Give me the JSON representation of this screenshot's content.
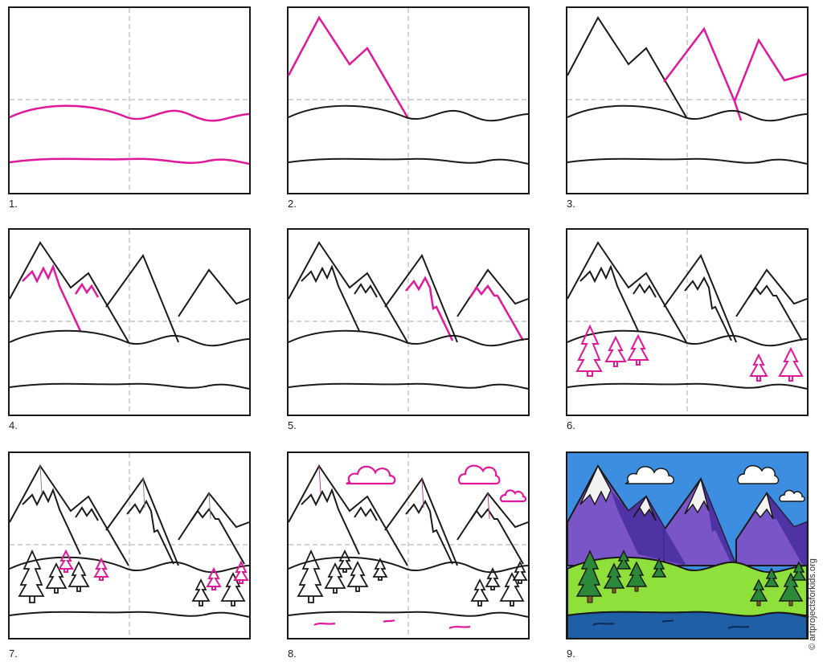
{
  "steps": [
    {
      "label": "1."
    },
    {
      "label": "2."
    },
    {
      "label": "3."
    },
    {
      "label": "4."
    },
    {
      "label": "5."
    },
    {
      "label": "6."
    },
    {
      "label": "7."
    },
    {
      "label": "8."
    },
    {
      "label": "9."
    }
  ],
  "credit": {
    "text": "© artprojectsforkids.org"
  },
  "colors": {
    "new_lines": "#e0189a",
    "lines": "#1a1a1a",
    "guides": "#aaaaaa",
    "sky": "#3d8ee0",
    "mountains": "#7a55c8",
    "mountain_shadow": "#4a2fa0",
    "snow": "#f2f2f2",
    "grass": "#8fe03a",
    "trees": "#2a8a3a",
    "water": "#1f5fa8"
  }
}
